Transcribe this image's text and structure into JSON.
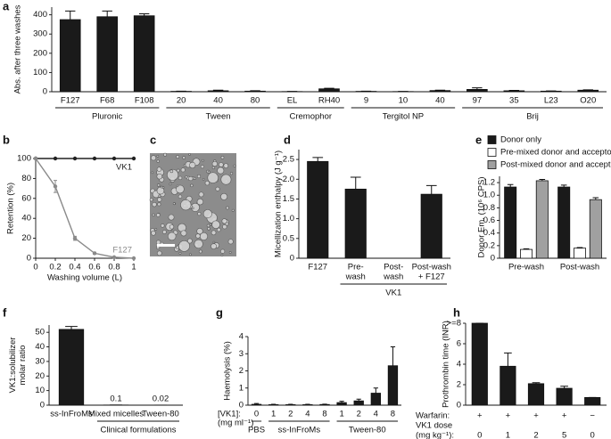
{
  "chart_data": [
    {
      "panel": "a",
      "type": "bar",
      "y_label": "Abs. after three washes",
      "ylim": [
        0,
        440
      ],
      "yticks": [
        0,
        100,
        200,
        300,
        400
      ],
      "color": "#1a1a1a",
      "groups": [
        {
          "name": "Pluronic",
          "categories": [
            "F127",
            "F68",
            "F108"
          ]
        },
        {
          "name": "Tween",
          "categories": [
            "20",
            "40",
            "80"
          ]
        },
        {
          "name": "Cremophor",
          "categories": [
            "EL",
            "RH40"
          ]
        },
        {
          "name": "Tergitol NP",
          "categories": [
            "9",
            "10",
            "40"
          ]
        },
        {
          "name": "Brij",
          "categories": [
            "97",
            "35",
            "L23",
            "O20"
          ]
        }
      ],
      "values": [
        375,
        390,
        395,
        2,
        5,
        3,
        1,
        15,
        2,
        1,
        6,
        12,
        5,
        3,
        8
      ],
      "errors": [
        45,
        30,
        10,
        1,
        3,
        2,
        1,
        3,
        1,
        1,
        2,
        8,
        2,
        1,
        2
      ]
    },
    {
      "panel": "b",
      "type": "line",
      "x_label": "Washing volume (L)",
      "y_label": "Retention (%)",
      "x": [
        0,
        0.2,
        0.4,
        0.6,
        0.8,
        1
      ],
      "xlim": [
        0,
        1
      ],
      "xticks": [
        0,
        0.2,
        0.4,
        0.6,
        0.8,
        1
      ],
      "ylim": [
        0,
        100
      ],
      "yticks": [
        0,
        20,
        40,
        60,
        80,
        100
      ],
      "series": [
        {
          "name": "VK1",
          "color": "#222222",
          "values": [
            100,
            100,
            100,
            100,
            100,
            100
          ]
        },
        {
          "name": "F127",
          "color": "#8a8a8a",
          "values": [
            100,
            72,
            20,
            5,
            1,
            0
          ],
          "errors": [
            0,
            6,
            2,
            1,
            0,
            0
          ]
        }
      ]
    },
    {
      "panel": "c",
      "type": "image"
    },
    {
      "panel": "d",
      "type": "bar",
      "y_label": "Micellization enthalpy (J g⁻¹)",
      "ylim": [
        0,
        2.75
      ],
      "yticks": [
        0,
        0.5,
        {
          "value": 1,
          "label": "1.0"
        },
        1.5,
        {
          "value": 2,
          "label": "2.0"
        },
        2.5
      ],
      "color": "#1a1a1a",
      "groups": [
        {
          "name": null,
          "categories": [
            [
              "F127"
            ]
          ]
        },
        {
          "name": "VK1",
          "categories": [
            [
              "Pre-",
              "wash"
            ],
            [
              "Post-",
              "wash"
            ],
            [
              "Post-wash",
              "+ F127"
            ]
          ]
        }
      ],
      "values": [
        2.45,
        1.75,
        0,
        1.62
      ],
      "errors": [
        0.1,
        0.3,
        0,
        0.22
      ]
    },
    {
      "panel": "e",
      "type": "bar",
      "y_label": "Donor Em. (10⁶ CPS)",
      "ylim": [
        0,
        1.3
      ],
      "yticks": [
        0,
        0.2,
        0.4,
        0.6,
        0.8,
        {
          "value": 1,
          "label": "1.0"
        },
        1.2
      ],
      "categories": [
        "Pre-wash",
        "Post-wash"
      ],
      "series": [
        {
          "name": "Donor only",
          "color": "#1a1a1a",
          "values": [
            1.13,
            1.13
          ],
          "errors": [
            0.04,
            0.03
          ]
        },
        {
          "name": "Pre-mixed donor and acceptor",
          "color": "#ffffff",
          "values": [
            0.14,
            0.16
          ],
          "errors": [
            0.01,
            0.01
          ]
        },
        {
          "name": "Post-mixed donor and acceptor",
          "color": "#a0a0a0",
          "values": [
            1.23,
            0.93
          ],
          "errors": [
            0.02,
            0.03
          ]
        }
      ]
    },
    {
      "panel": "f",
      "type": "bar",
      "y_label": [
        "VK1:solubilizer",
        "molar ratio"
      ],
      "ylim": [
        0,
        55
      ],
      "yticks": [
        0,
        10,
        20,
        30,
        40,
        50
      ],
      "color": "#1a1a1a",
      "groups": [
        {
          "name": null,
          "categories": [
            "ss-InFroMs"
          ]
        },
        {
          "name": "Clinical formulations",
          "categories": [
            "Mixed micelles",
            "Tween-80"
          ]
        }
      ],
      "values": [
        52,
        0.1,
        0.02
      ],
      "errors": [
        2,
        0,
        0
      ],
      "value_labels": [
        null,
        "0.1",
        "0.02"
      ]
    },
    {
      "panel": "g",
      "type": "bar",
      "y_label": "Haemolysis (%)",
      "x_label": [
        "[VK1]:",
        "(mg ml⁻¹)"
      ],
      "ylim": [
        0,
        4
      ],
      "yticks": [
        0,
        1,
        2,
        3,
        4
      ],
      "color": "#1a1a1a",
      "groups": [
        {
          "name": "PBS",
          "categories": [
            "0"
          ]
        },
        {
          "name": "ss-InFroMs",
          "categories": [
            "1",
            "2",
            "4",
            "8"
          ]
        },
        {
          "name": "Tween-80",
          "categories": [
            "1",
            "2",
            "4",
            "8"
          ]
        }
      ],
      "values": [
        0.05,
        0.03,
        0.03,
        0.03,
        0.04,
        0.15,
        0.25,
        0.7,
        2.3
      ],
      "errors": [
        0.05,
        0.02,
        0.02,
        0.02,
        0.02,
        0.08,
        0.1,
        0.3,
        1.1
      ]
    },
    {
      "panel": "h",
      "type": "bar",
      "y_label": "Prothrombin time (INR)",
      "ylim": [
        0,
        8
      ],
      "yticks": [
        0,
        2,
        4,
        6,
        {
          "value": 8,
          "label": ">=8"
        }
      ],
      "color": "#1a1a1a",
      "category_rows": [
        {
          "label": [
            "Warfarin:"
          ],
          "categories": [
            "+",
            "+",
            "+",
            "+",
            "−"
          ]
        },
        {
          "label": [
            "VK1 dose",
            "(mg kg⁻¹):"
          ],
          "categories": [
            "0",
            "1",
            "2",
            "5",
            "0"
          ]
        }
      ],
      "values": [
        8,
        3.8,
        2.1,
        1.65,
        0.75
      ],
      "errors": [
        0,
        1.3,
        0.1,
        0.2,
        0
      ]
    }
  ]
}
